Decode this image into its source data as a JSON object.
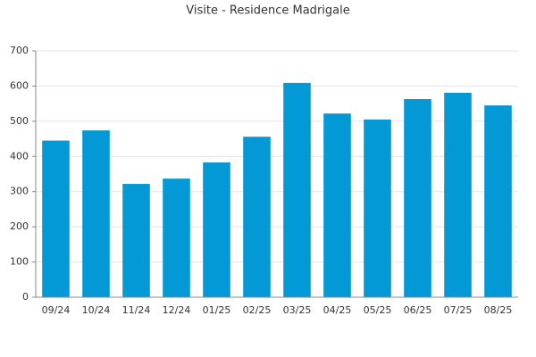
{
  "chart_data": {
    "type": "bar",
    "title": "Visite - Residence Madrigale",
    "categories": [
      "09/24",
      "10/24",
      "11/24",
      "12/24",
      "01/25",
      "02/25",
      "03/25",
      "04/25",
      "05/25",
      "06/25",
      "07/25",
      "08/25"
    ],
    "values": [
      445,
      474,
      322,
      337,
      383,
      456,
      609,
      522,
      505,
      563,
      581,
      545
    ],
    "color": "#0399d6",
    "ylim": [
      0,
      700
    ],
    "yticks": [
      0,
      100,
      200,
      300,
      400,
      500,
      600,
      700
    ],
    "grid": true
  }
}
